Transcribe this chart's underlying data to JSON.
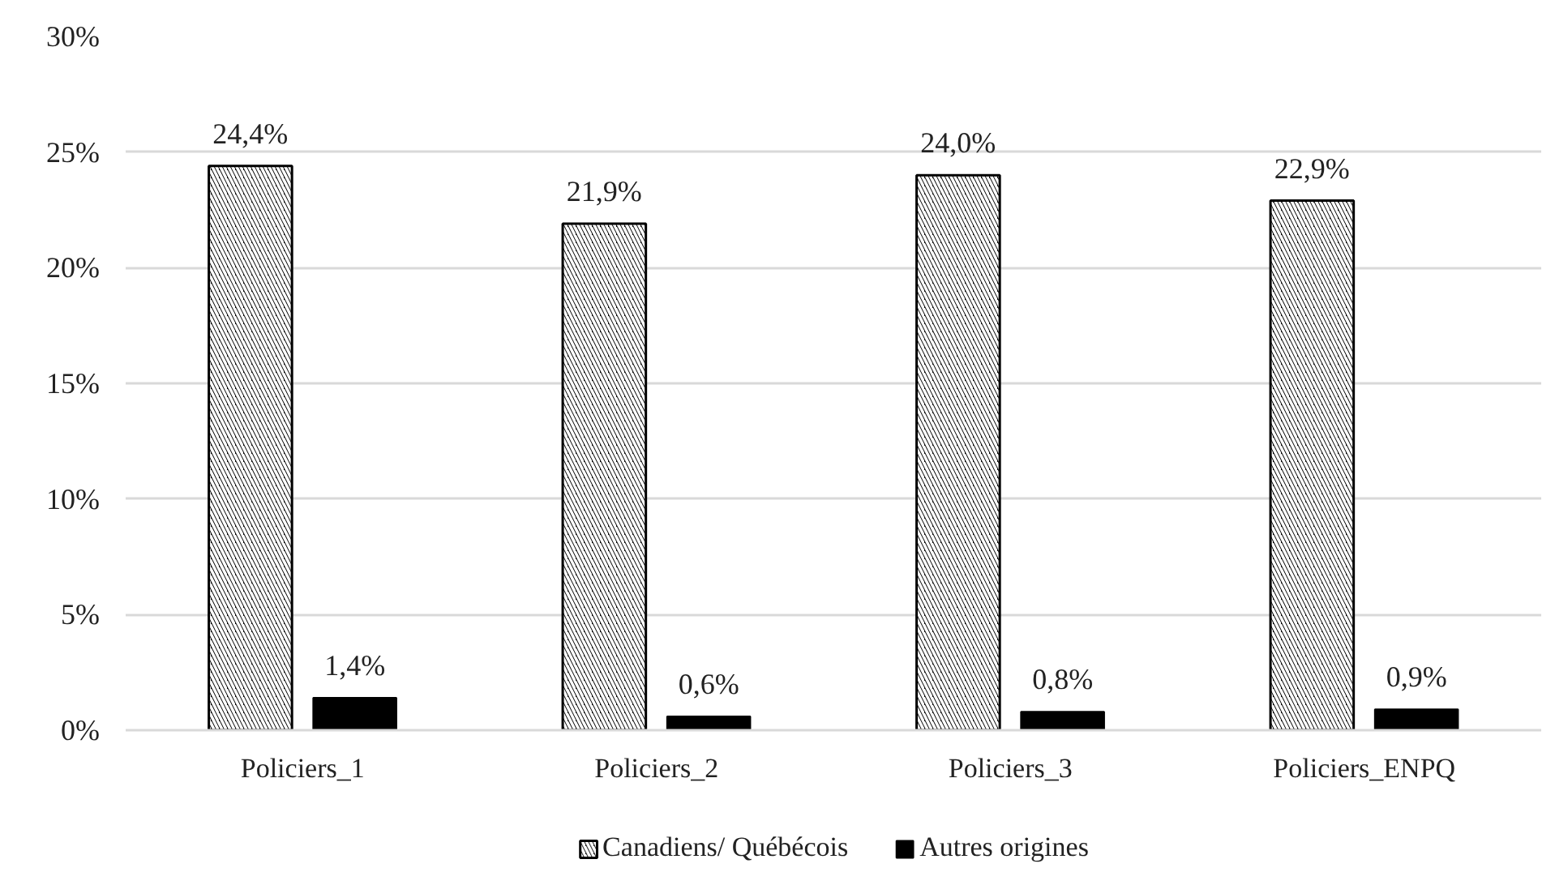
{
  "chart_data": {
    "type": "bar",
    "categories": [
      "Policiers_1",
      "Policiers_2",
      "Policiers_3",
      "Policiers_ENPQ"
    ],
    "series": [
      {
        "name": "Canadiens/ Québécois",
        "color": "#000000",
        "values": [
          24.4,
          21.9,
          24.0,
          22.9
        ],
        "value_labels": [
          "24,4%",
          "21,9%",
          "24,0%",
          "22,9%"
        ]
      },
      {
        "name": "Autres origines",
        "color": "#000000",
        "values": [
          1.4,
          0.6,
          0.8,
          0.9
        ],
        "value_labels": [
          "1,4%",
          "0,6%",
          "0,8%",
          "0,9%"
        ]
      }
    ],
    "ylim": [
      0,
      30
    ],
    "yticks": [
      {
        "value": 0,
        "label": "0%"
      },
      {
        "value": 5,
        "label": "5%"
      },
      {
        "value": 10,
        "label": "10%"
      },
      {
        "value": 15,
        "label": "15%"
      },
      {
        "value": 20,
        "label": "20%"
      },
      {
        "value": 25,
        "label": "25%"
      },
      {
        "value": 30,
        "label": "30%"
      }
    ],
    "grid": "y",
    "legend": "bottom"
  }
}
